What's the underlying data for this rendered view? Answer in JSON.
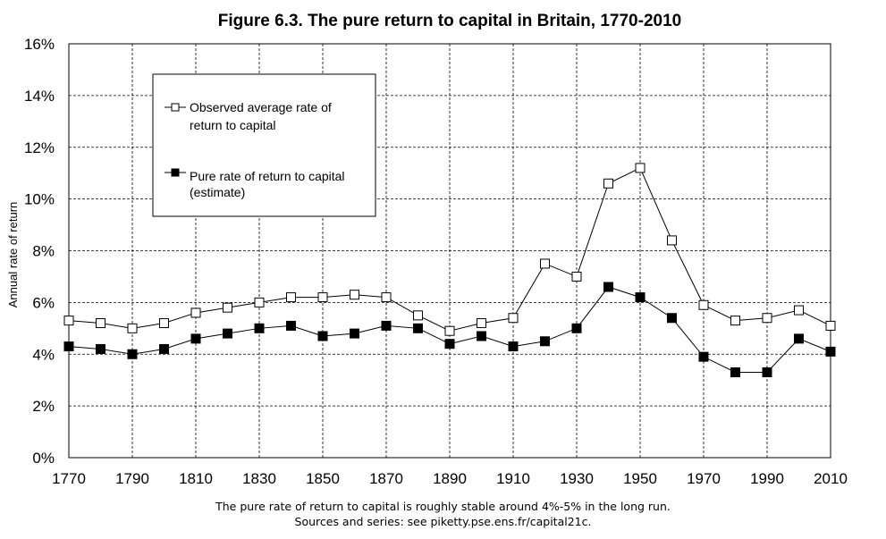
{
  "chart_data": {
    "type": "line",
    "title": "Figure 6.3. The pure return to capital in Britain, 1770-2010",
    "xlabel": "",
    "ylabel": "Annual rate of return",
    "xlim": [
      1770,
      2010
    ],
    "ylim": [
      0,
      16
    ],
    "x_ticks": [
      "1770",
      "1790",
      "1810",
      "1830",
      "1850",
      "1870",
      "1890",
      "1910",
      "1930",
      "1950",
      "1970",
      "1990",
      "2010"
    ],
    "y_ticks": [
      "0%",
      "2%",
      "4%",
      "6%",
      "8%",
      "10%",
      "12%",
      "14%",
      "16%"
    ],
    "grid": true,
    "legend_position": "top-left",
    "x": [
      1770,
      1780,
      1790,
      1800,
      1810,
      1820,
      1830,
      1840,
      1850,
      1860,
      1870,
      1880,
      1890,
      1900,
      1910,
      1920,
      1930,
      1940,
      1950,
      1960,
      1970,
      1980,
      1990,
      2000,
      2010
    ],
    "series": [
      {
        "name": "Observed average rate of return to capital",
        "legend_lines": [
          "Observed average rate of",
          "return to capital"
        ],
        "marker": "open-square",
        "values": [
          5.3,
          5.2,
          5.0,
          5.2,
          5.6,
          5.8,
          6.0,
          6.2,
          6.2,
          6.3,
          6.2,
          5.5,
          4.9,
          5.2,
          5.4,
          7.5,
          7.0,
          10.6,
          11.2,
          8.4,
          5.9,
          5.3,
          5.4,
          5.7,
          5.1
        ]
      },
      {
        "name": "Pure rate of return to capital (estimate)",
        "legend_lines": [
          "Pure rate of return to capital",
          "(estimate)"
        ],
        "marker": "filled-square",
        "values": [
          4.3,
          4.2,
          4.0,
          4.2,
          4.6,
          4.8,
          5.0,
          5.1,
          4.7,
          4.8,
          5.1,
          5.0,
          4.4,
          4.7,
          4.3,
          4.5,
          5.0,
          6.6,
          6.2,
          5.4,
          3.9,
          3.3,
          3.3,
          4.6,
          4.1
        ]
      }
    ],
    "notes": [
      "The pure rate of return to capital is roughly stable around 4%-5% in the long run.",
      "Sources and series: see piketty.pse.ens.fr/capital21c."
    ]
  }
}
